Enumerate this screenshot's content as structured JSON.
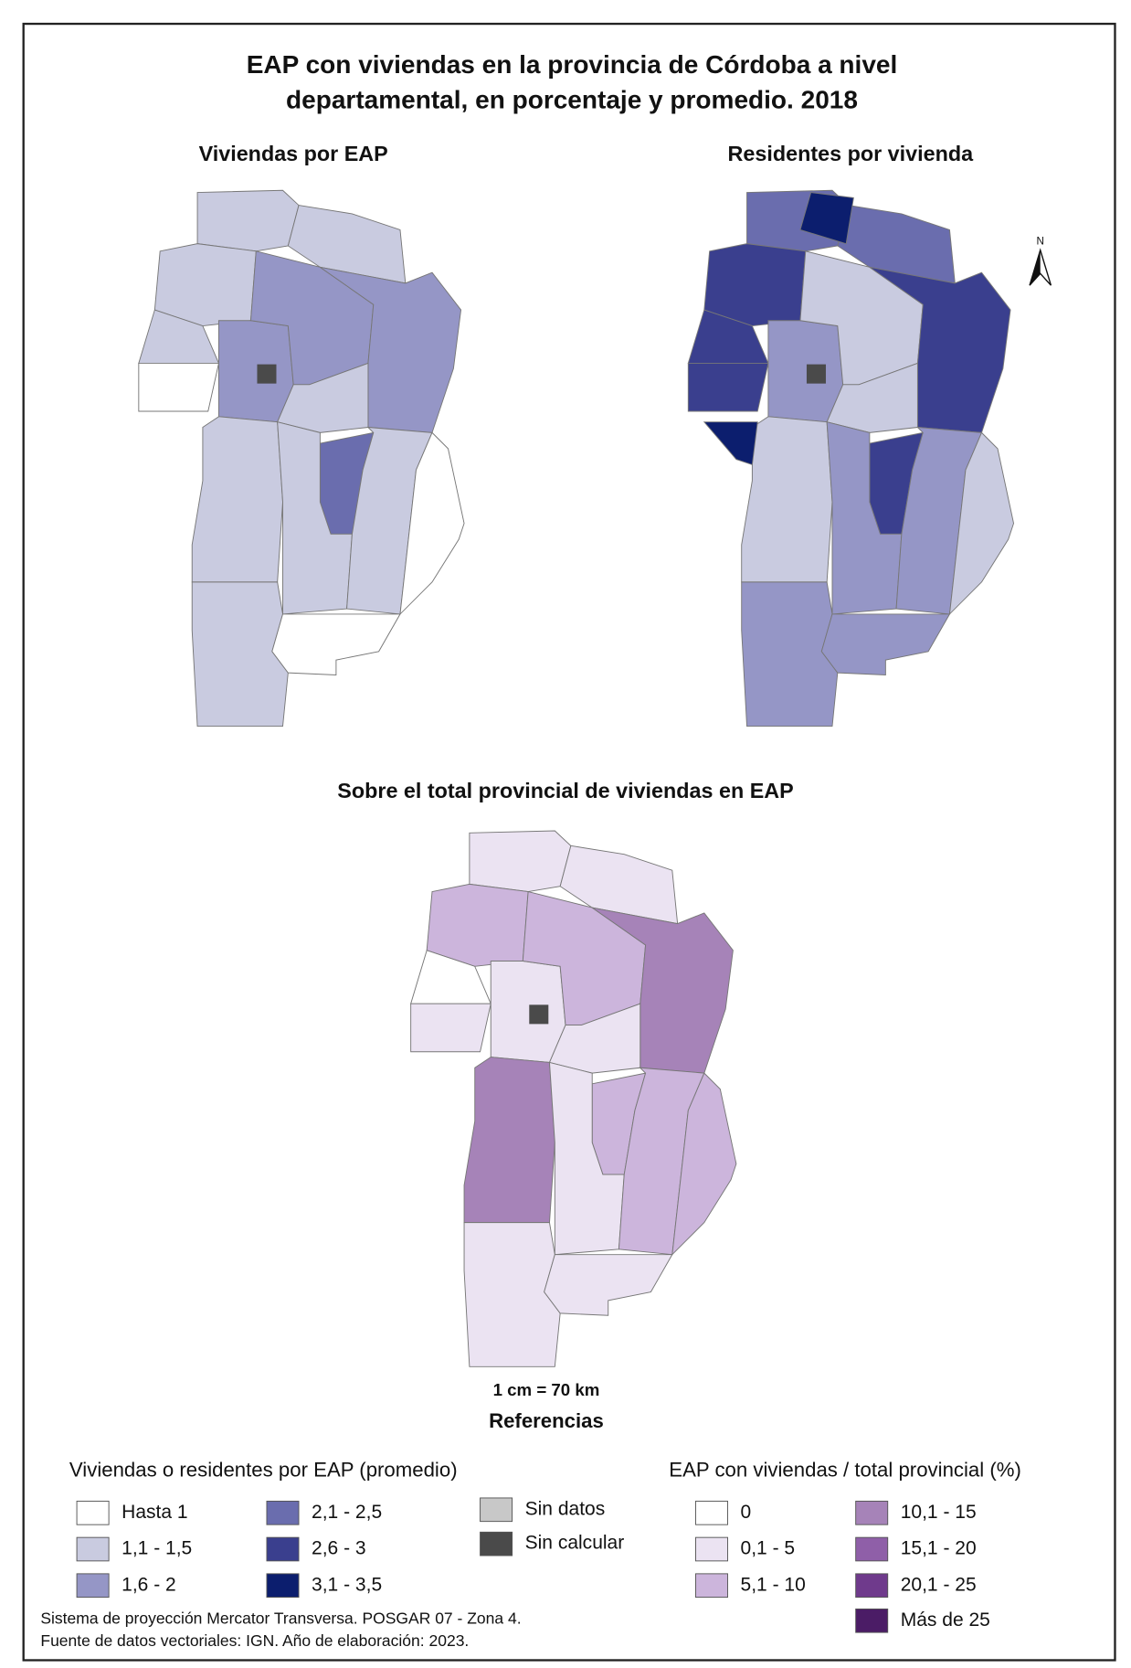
{
  "title": [
    "EAP con viviendas en la provincia de Córdoba a nivel",
    "departamental, en porcentaje y promedio. 2018"
  ],
  "maps": [
    {
      "title": "Viviendas por EAP"
    },
    {
      "title": "Residentes por vivienda"
    },
    {
      "title": "Sobre el total provincial de viviendas en EAP"
    }
  ],
  "north": "N",
  "scale": "1 cm = 70 km",
  "legend": {
    "title": "Referencias",
    "groups": [
      {
        "title": "Viviendas o residentes por EAP (promedio)",
        "items": [
          {
            "label": "Hasta 1",
            "color": "#ffffff"
          },
          {
            "label": "1,1 - 1,5",
            "color": "#c9cbe0"
          },
          {
            "label": "1,6 - 2",
            "color": "#9596c6"
          },
          {
            "label": "2,1 - 2,5",
            "color": "#6a6dae"
          },
          {
            "label": "2,6 - 3",
            "color": "#3a3f8e"
          },
          {
            "label": "3,1 - 3,5",
            "color": "#0c1e6e"
          }
        ]
      },
      {
        "items": [
          {
            "label": "Sin datos",
            "color": "#c8c8c8"
          },
          {
            "label": "Sin calcular",
            "color": "#4a4a4a"
          }
        ]
      },
      {
        "title": "EAP con viviendas / total provincial (%)",
        "items": [
          {
            "label": "0",
            "color": "#ffffff"
          },
          {
            "label": "0,1 - 5",
            "color": "#ebe3f2"
          },
          {
            "label": "5,1 - 10",
            "color": "#ccb5dc"
          },
          {
            "label": "10,1 - 15",
            "color": "#a683b8"
          },
          {
            "label": "15,1 - 20",
            "color": "#8f5fa8"
          },
          {
            "label": "20,1 - 25",
            "color": "#6f3a8c"
          },
          {
            "label": "Más de 25",
            "color": "#4b1c66"
          }
        ]
      }
    ]
  },
  "footer": [
    "Sistema de proyección Mercator Transversa. POSGAR 07 - Zona 4.",
    "Fuente de datos vectoriales: IGN. Año de elaboración: 2023."
  ]
}
